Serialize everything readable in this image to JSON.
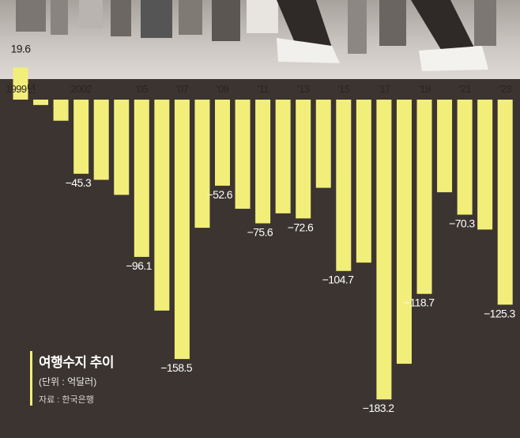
{
  "chart_data": {
    "type": "bar",
    "title": "여행수지 추이",
    "unit": "(단위 : 억달러)",
    "source": "자료 : 한국은행",
    "xlabel": "",
    "ylabel": "",
    "ylim": [
      -190,
      20
    ],
    "categories": [
      "1999",
      "2000",
      "2001",
      "2002",
      "2003",
      "2004",
      "2005",
      "2006",
      "2007",
      "2008",
      "2009",
      "2010",
      "2011",
      "2012",
      "2013",
      "2014",
      "2015",
      "2016",
      "2017",
      "2018",
      "2019",
      "2020",
      "2021",
      "2022",
      "2023"
    ],
    "tick_labels": [
      "1999년",
      "",
      "",
      "2002",
      "",
      "",
      "’05",
      "",
      "’07",
      "",
      "’09",
      "",
      "’11",
      "",
      "’13",
      "",
      "’15",
      "",
      "’17",
      "",
      "’19",
      "",
      "’21",
      "",
      "’23"
    ],
    "values": [
      19.6,
      -3.3,
      -12.9,
      -45.3,
      -49,
      -58.2,
      -96.1,
      -128.9,
      -158.5,
      -78.3,
      -52.6,
      -66.7,
      -75.6,
      -69.5,
      -72.6,
      -53.9,
      -104.7,
      -99.6,
      -183.2,
      -161.4,
      -118.7,
      -56.6,
      -70.3,
      -79.4,
      -125.3
    ],
    "data_labels": [
      "19.6",
      "",
      "",
      "−45.3",
      "",
      "",
      "−96.1",
      "",
      "−158.5",
      "",
      "−52.6",
      "",
      "−75.6",
      "",
      "−72.6",
      "",
      "−104.7",
      "",
      "−183.2",
      "",
      "−118.7",
      "",
      "−70.3",
      "",
      "−125.3"
    ],
    "colors": {
      "bar": "#f2ee7a",
      "background": "#3b3431",
      "photo_strip": "#c8c2bc"
    }
  }
}
